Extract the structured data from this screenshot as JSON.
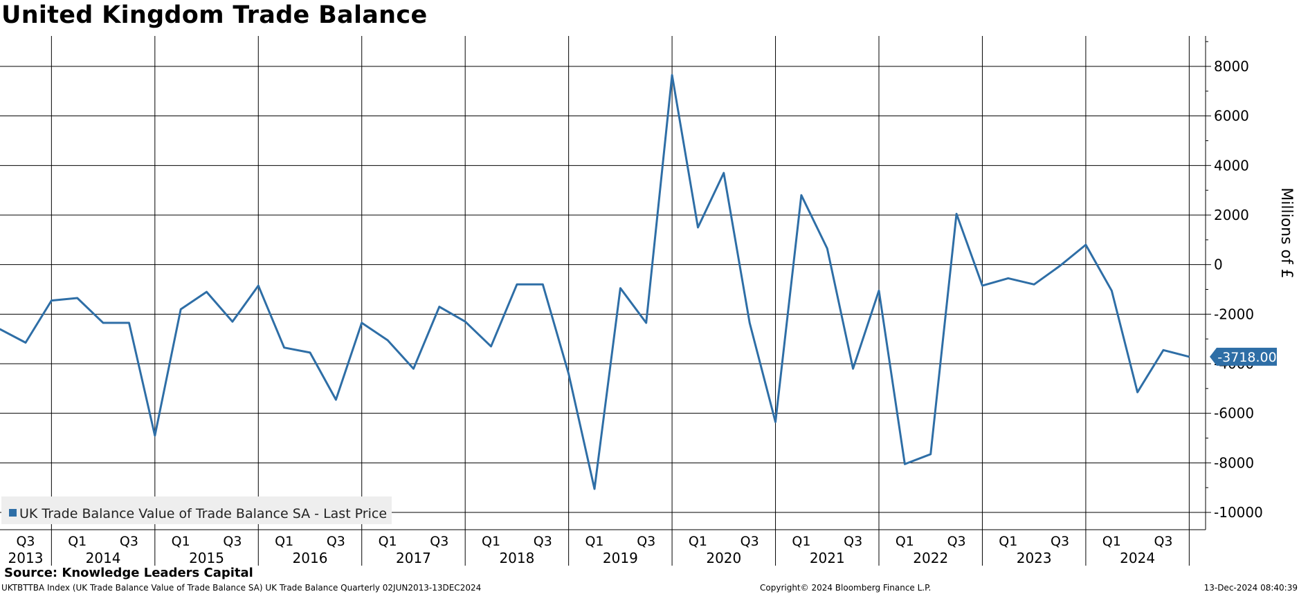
{
  "title": "United Kingdom Trade Balance",
  "source": "Source: Knowledge Leaders Capital",
  "footer": {
    "left": "UKTBTTBA Index (UK Trade Balance Value of Trade Balance SA) UK Trade Balance  Quarterly 02JUN2013-13DEC2024",
    "center": "Copyright© 2024 Bloomberg Finance L.P.",
    "right": "13-Dec-2024 08:40:39"
  },
  "chart_data": {
    "type": "line",
    "title": "United Kingdom Trade Balance",
    "ylabel": "Millions of £",
    "ylim": [
      -10700,
      9300
    ],
    "yticks": [
      8000,
      6000,
      4000,
      2000,
      0,
      -2000,
      -4000,
      -6000,
      -8000,
      -10000
    ],
    "ytick_labels": [
      "8000",
      "6000",
      "4000",
      "2000",
      "0",
      "-2000",
      "-4000",
      "-6000",
      "-8000",
      "-10000"
    ],
    "grid": true,
    "legend_position": "bottom-left",
    "last_value_label": "-3718.00",
    "x_quarter_ticks": [
      {
        "label": "Q3",
        "x": 2013.5
      },
      {
        "label": "Q1",
        "x": 2014.0
      },
      {
        "label": "Q3",
        "x": 2014.5
      },
      {
        "label": "Q1",
        "x": 2015.0
      },
      {
        "label": "Q3",
        "x": 2015.5
      },
      {
        "label": "Q1",
        "x": 2016.0
      },
      {
        "label": "Q3",
        "x": 2016.5
      },
      {
        "label": "Q1",
        "x": 2017.0
      },
      {
        "label": "Q3",
        "x": 2017.5
      },
      {
        "label": "Q1",
        "x": 2018.0
      },
      {
        "label": "Q3",
        "x": 2018.5
      },
      {
        "label": "Q1",
        "x": 2019.0
      },
      {
        "label": "Q3",
        "x": 2019.5
      },
      {
        "label": "Q1",
        "x": 2020.0
      },
      {
        "label": "Q3",
        "x": 2020.5
      },
      {
        "label": "Q1",
        "x": 2021.0
      },
      {
        "label": "Q3",
        "x": 2021.5
      },
      {
        "label": "Q1",
        "x": 2022.0
      },
      {
        "label": "Q3",
        "x": 2022.5
      },
      {
        "label": "Q1",
        "x": 2023.0
      },
      {
        "label": "Q3",
        "x": 2023.5
      },
      {
        "label": "Q1",
        "x": 2024.0
      },
      {
        "label": "Q3",
        "x": 2024.5
      }
    ],
    "x_year_labels": [
      {
        "label": "2013",
        "x": 2013.5
      },
      {
        "label": "2014",
        "x": 2014.25
      },
      {
        "label": "2015",
        "x": 2015.25
      },
      {
        "label": "2016",
        "x": 2016.25
      },
      {
        "label": "2017",
        "x": 2017.25
      },
      {
        "label": "2018",
        "x": 2018.25
      },
      {
        "label": "2019",
        "x": 2019.25
      },
      {
        "label": "2020",
        "x": 2020.25
      },
      {
        "label": "2021",
        "x": 2021.25
      },
      {
        "label": "2022",
        "x": 2022.25
      },
      {
        "label": "2023",
        "x": 2023.25
      },
      {
        "label": "2024",
        "x": 2024.25
      }
    ],
    "year_boundaries": [
      2013.75,
      2014.75,
      2015.75,
      2016.75,
      2017.75,
      2018.75,
      2019.75,
      2020.75,
      2021.75,
      2022.75,
      2023.75,
      2024.75
    ],
    "series": [
      {
        "name": "UK Trade Balance Value of Trade Balance SA - Last Price",
        "color": "#2e6ea6",
        "points": [
          {
            "x": 2013.25,
            "y": -2600
          },
          {
            "x": 2013.5,
            "y": -3150
          },
          {
            "x": 2013.75,
            "y": -1450
          },
          {
            "x": 2014.0,
            "y": -1350
          },
          {
            "x": 2014.25,
            "y": -2350
          },
          {
            "x": 2014.5,
            "y": -2350
          },
          {
            "x": 2014.75,
            "y": -6900
          },
          {
            "x": 2015.0,
            "y": -1800
          },
          {
            "x": 2015.25,
            "y": -1100
          },
          {
            "x": 2015.5,
            "y": -2300
          },
          {
            "x": 2015.75,
            "y": -850
          },
          {
            "x": 2016.0,
            "y": -3350
          },
          {
            "x": 2016.25,
            "y": -3550
          },
          {
            "x": 2016.5,
            "y": -5450
          },
          {
            "x": 2016.75,
            "y": -2350
          },
          {
            "x": 2017.0,
            "y": -3050
          },
          {
            "x": 2017.25,
            "y": -4200
          },
          {
            "x": 2017.5,
            "y": -1700
          },
          {
            "x": 2017.75,
            "y": -2300
          },
          {
            "x": 2018.0,
            "y": -3300
          },
          {
            "x": 2018.25,
            "y": -800
          },
          {
            "x": 2018.5,
            "y": -800
          },
          {
            "x": 2018.75,
            "y": -4400
          },
          {
            "x": 2019.0,
            "y": -9050
          },
          {
            "x": 2019.25,
            "y": -950
          },
          {
            "x": 2019.5,
            "y": -2350
          },
          {
            "x": 2019.75,
            "y": 7650
          },
          {
            "x": 2020.0,
            "y": 1500
          },
          {
            "x": 2020.25,
            "y": 3700
          },
          {
            "x": 2020.5,
            "y": -2350
          },
          {
            "x": 2020.75,
            "y": -6350
          },
          {
            "x": 2021.0,
            "y": 2800
          },
          {
            "x": 2021.25,
            "y": 650
          },
          {
            "x": 2021.5,
            "y": -4200
          },
          {
            "x": 2021.75,
            "y": -1050
          },
          {
            "x": 2022.0,
            "y": -8050
          },
          {
            "x": 2022.25,
            "y": -7650
          },
          {
            "x": 2022.5,
            "y": 2050
          },
          {
            "x": 2022.75,
            "y": -850
          },
          {
            "x": 2023.0,
            "y": -550
          },
          {
            "x": 2023.25,
            "y": -800
          },
          {
            "x": 2023.5,
            "y": -50
          },
          {
            "x": 2023.75,
            "y": 800
          },
          {
            "x": 2024.0,
            "y": -1050
          },
          {
            "x": 2024.25,
            "y": -5150
          },
          {
            "x": 2024.5,
            "y": -3450
          },
          {
            "x": 2024.75,
            "y": -3718
          }
        ]
      }
    ]
  }
}
